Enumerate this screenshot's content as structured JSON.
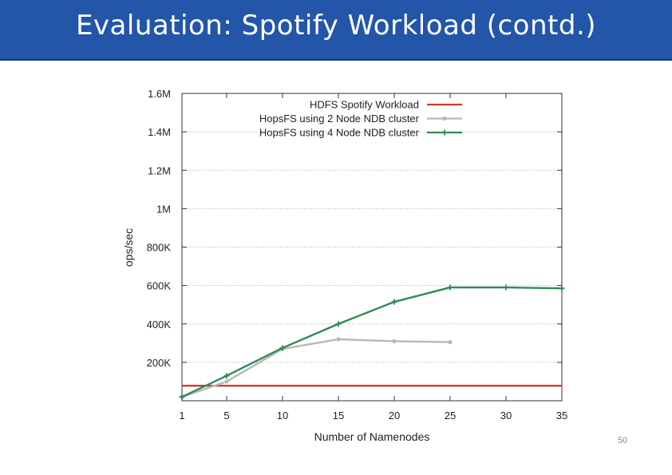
{
  "slide": {
    "title": "Evaluation: Spotify Workload (contd.)",
    "page_number": "50"
  },
  "colors": {
    "title_bar": "#2356a8",
    "hdfs": "#d03a2a",
    "hops2": "#b8b8b8",
    "hops4": "#2e8b57"
  },
  "chart_data": {
    "type": "line",
    "title": "",
    "xlabel": "Number of Namenodes",
    "ylabel": "ops/sec",
    "xlim": [
      1,
      35
    ],
    "ylim": [
      0,
      1600000
    ],
    "xticks": [
      1,
      5,
      10,
      15,
      20,
      25,
      30,
      35
    ],
    "yticks": [
      {
        "value": 200000,
        "label": "200K"
      },
      {
        "value": 400000,
        "label": "400K"
      },
      {
        "value": 600000,
        "label": "600K"
      },
      {
        "value": 800000,
        "label": "800K"
      },
      {
        "value": 1000000,
        "label": "1M"
      },
      {
        "value": 1200000,
        "label": "1.2M"
      },
      {
        "value": 1400000,
        "label": "1.4M"
      },
      {
        "value": 1600000,
        "label": "1.6M"
      }
    ],
    "grid": true,
    "legend_position": "top-right",
    "series": [
      {
        "name": "HDFS Spotify Workload",
        "color": "#d03a2a",
        "marker": "none",
        "x": [
          1,
          35
        ],
        "y": [
          78000,
          78000
        ]
      },
      {
        "name": "HopsFS using 2 Node NDB cluster",
        "color": "#b8b8b8",
        "marker": "dot",
        "x": [
          1,
          5,
          10,
          15,
          20,
          25
        ],
        "y": [
          20000,
          100000,
          270000,
          320000,
          310000,
          305000
        ]
      },
      {
        "name": "HopsFS using 4 Node NDB cluster",
        "color": "#2e8b57",
        "marker": "plus",
        "x": [
          1,
          5,
          10,
          15,
          20,
          25,
          30,
          35
        ],
        "y": [
          20000,
          130000,
          275000,
          400000,
          515000,
          590000,
          590000,
          585000
        ]
      }
    ]
  }
}
